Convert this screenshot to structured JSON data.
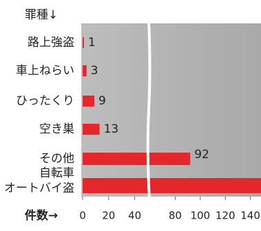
{
  "chart_data": {
    "type": "hbar",
    "category_header": "罪種↓",
    "value_axis_label": "件数→",
    "categories": [
      "路上強盗",
      "車上ねらい",
      "ひったくり",
      "空き巣",
      "その他",
      [
        "自転車",
        "オートバイ盗"
      ]
    ],
    "values": [
      1,
      3,
      9,
      13,
      92,
      150
    ],
    "color": "#e5262b",
    "xlim": [
      0,
      150
    ],
    "xticks": [
      0,
      20,
      40,
      80,
      100,
      120,
      140
    ],
    "axis_break": [
      50,
      60
    ]
  }
}
